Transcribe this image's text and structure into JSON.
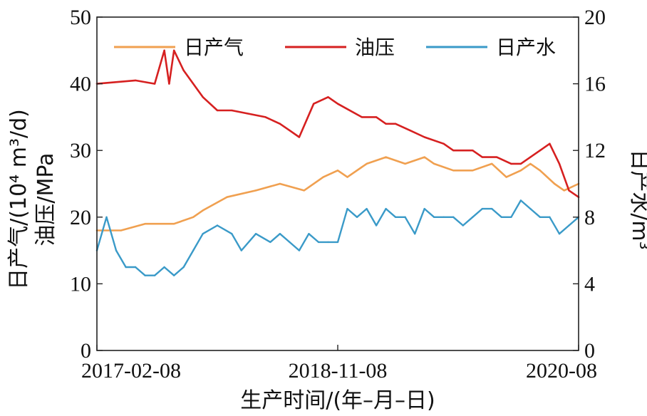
{
  "chart_data": {
    "type": "line",
    "xlabel": "生产时间/(年–月–日)",
    "x_ticks": [
      "2017-02-08",
      "2018-11-08",
      "2020-08"
    ],
    "x_tick_positions": [
      0.0,
      0.5,
      1.0
    ],
    "ylabel_left": [
      "日产气/(10⁴ m³/d)",
      "油压/MPa"
    ],
    "ylabel_right": "日产水/m³",
    "ylim_left": [
      0,
      50
    ],
    "ylim_right": [
      0,
      20
    ],
    "yticks_left": [
      "0",
      "10",
      "20",
      "30",
      "40",
      "50"
    ],
    "yticks_right": [
      "0",
      "4",
      "8",
      "12",
      "16",
      "20"
    ],
    "legend_position": "top",
    "colors": {
      "gas": "#F0A050",
      "pressure": "#D62020",
      "water": "#3A9AC8"
    },
    "series": [
      {
        "name": "日产气",
        "axis": "left",
        "x": [
          0.0,
          0.05,
          0.1,
          0.16,
          0.2,
          0.22,
          0.27,
          0.33,
          0.38,
          0.43,
          0.47,
          0.5,
          0.52,
          0.56,
          0.6,
          0.64,
          0.68,
          0.7,
          0.74,
          0.78,
          0.82,
          0.85,
          0.88,
          0.9,
          0.92,
          0.95,
          0.97,
          1.0
        ],
        "values": [
          18,
          18,
          19,
          19,
          20,
          21,
          23,
          24,
          25,
          24,
          26,
          27,
          26,
          28,
          29,
          28,
          29,
          28,
          27,
          27,
          28,
          26,
          27,
          28,
          27,
          25,
          24,
          25
        ]
      },
      {
        "name": "油压",
        "axis": "left",
        "x": [
          0.0,
          0.08,
          0.12,
          0.14,
          0.15,
          0.16,
          0.18,
          0.22,
          0.25,
          0.28,
          0.35,
          0.38,
          0.4,
          0.42,
          0.45,
          0.48,
          0.5,
          0.55,
          0.58,
          0.6,
          0.62,
          0.65,
          0.68,
          0.72,
          0.74,
          0.76,
          0.78,
          0.8,
          0.83,
          0.86,
          0.88,
          0.9,
          0.92,
          0.94,
          0.96,
          0.98,
          1.0
        ],
        "values": [
          40,
          40.5,
          40,
          45,
          40,
          45,
          42,
          38,
          36,
          36,
          35,
          34,
          33,
          32,
          37,
          38,
          37,
          35,
          35,
          34,
          34,
          33,
          32,
          31,
          30,
          30,
          30,
          29,
          29,
          28,
          28,
          29,
          30,
          31,
          28,
          24,
          23
        ]
      },
      {
        "name": "日产水",
        "axis": "right",
        "x": [
          0.0,
          0.02,
          0.04,
          0.06,
          0.08,
          0.1,
          0.12,
          0.14,
          0.16,
          0.18,
          0.2,
          0.22,
          0.25,
          0.28,
          0.3,
          0.33,
          0.36,
          0.38,
          0.4,
          0.42,
          0.44,
          0.46,
          0.48,
          0.5,
          0.52,
          0.54,
          0.56,
          0.58,
          0.6,
          0.62,
          0.64,
          0.66,
          0.68,
          0.7,
          0.72,
          0.74,
          0.76,
          0.78,
          0.8,
          0.82,
          0.84,
          0.86,
          0.88,
          0.9,
          0.92,
          0.94,
          0.96,
          0.98,
          1.0
        ],
        "values": [
          6,
          8,
          6,
          5,
          5,
          4.5,
          4.5,
          5,
          4.5,
          5,
          6,
          7,
          7.5,
          7,
          6,
          7,
          6.5,
          7,
          6.5,
          6,
          7,
          6.5,
          6.5,
          6.5,
          8.5,
          8,
          8.5,
          7.5,
          8.5,
          8,
          8,
          7,
          8.5,
          8,
          8,
          8,
          7.5,
          8,
          8.5,
          8.5,
          8,
          8,
          9,
          8.5,
          8,
          8,
          7,
          7.5,
          8
        ]
      }
    ]
  }
}
